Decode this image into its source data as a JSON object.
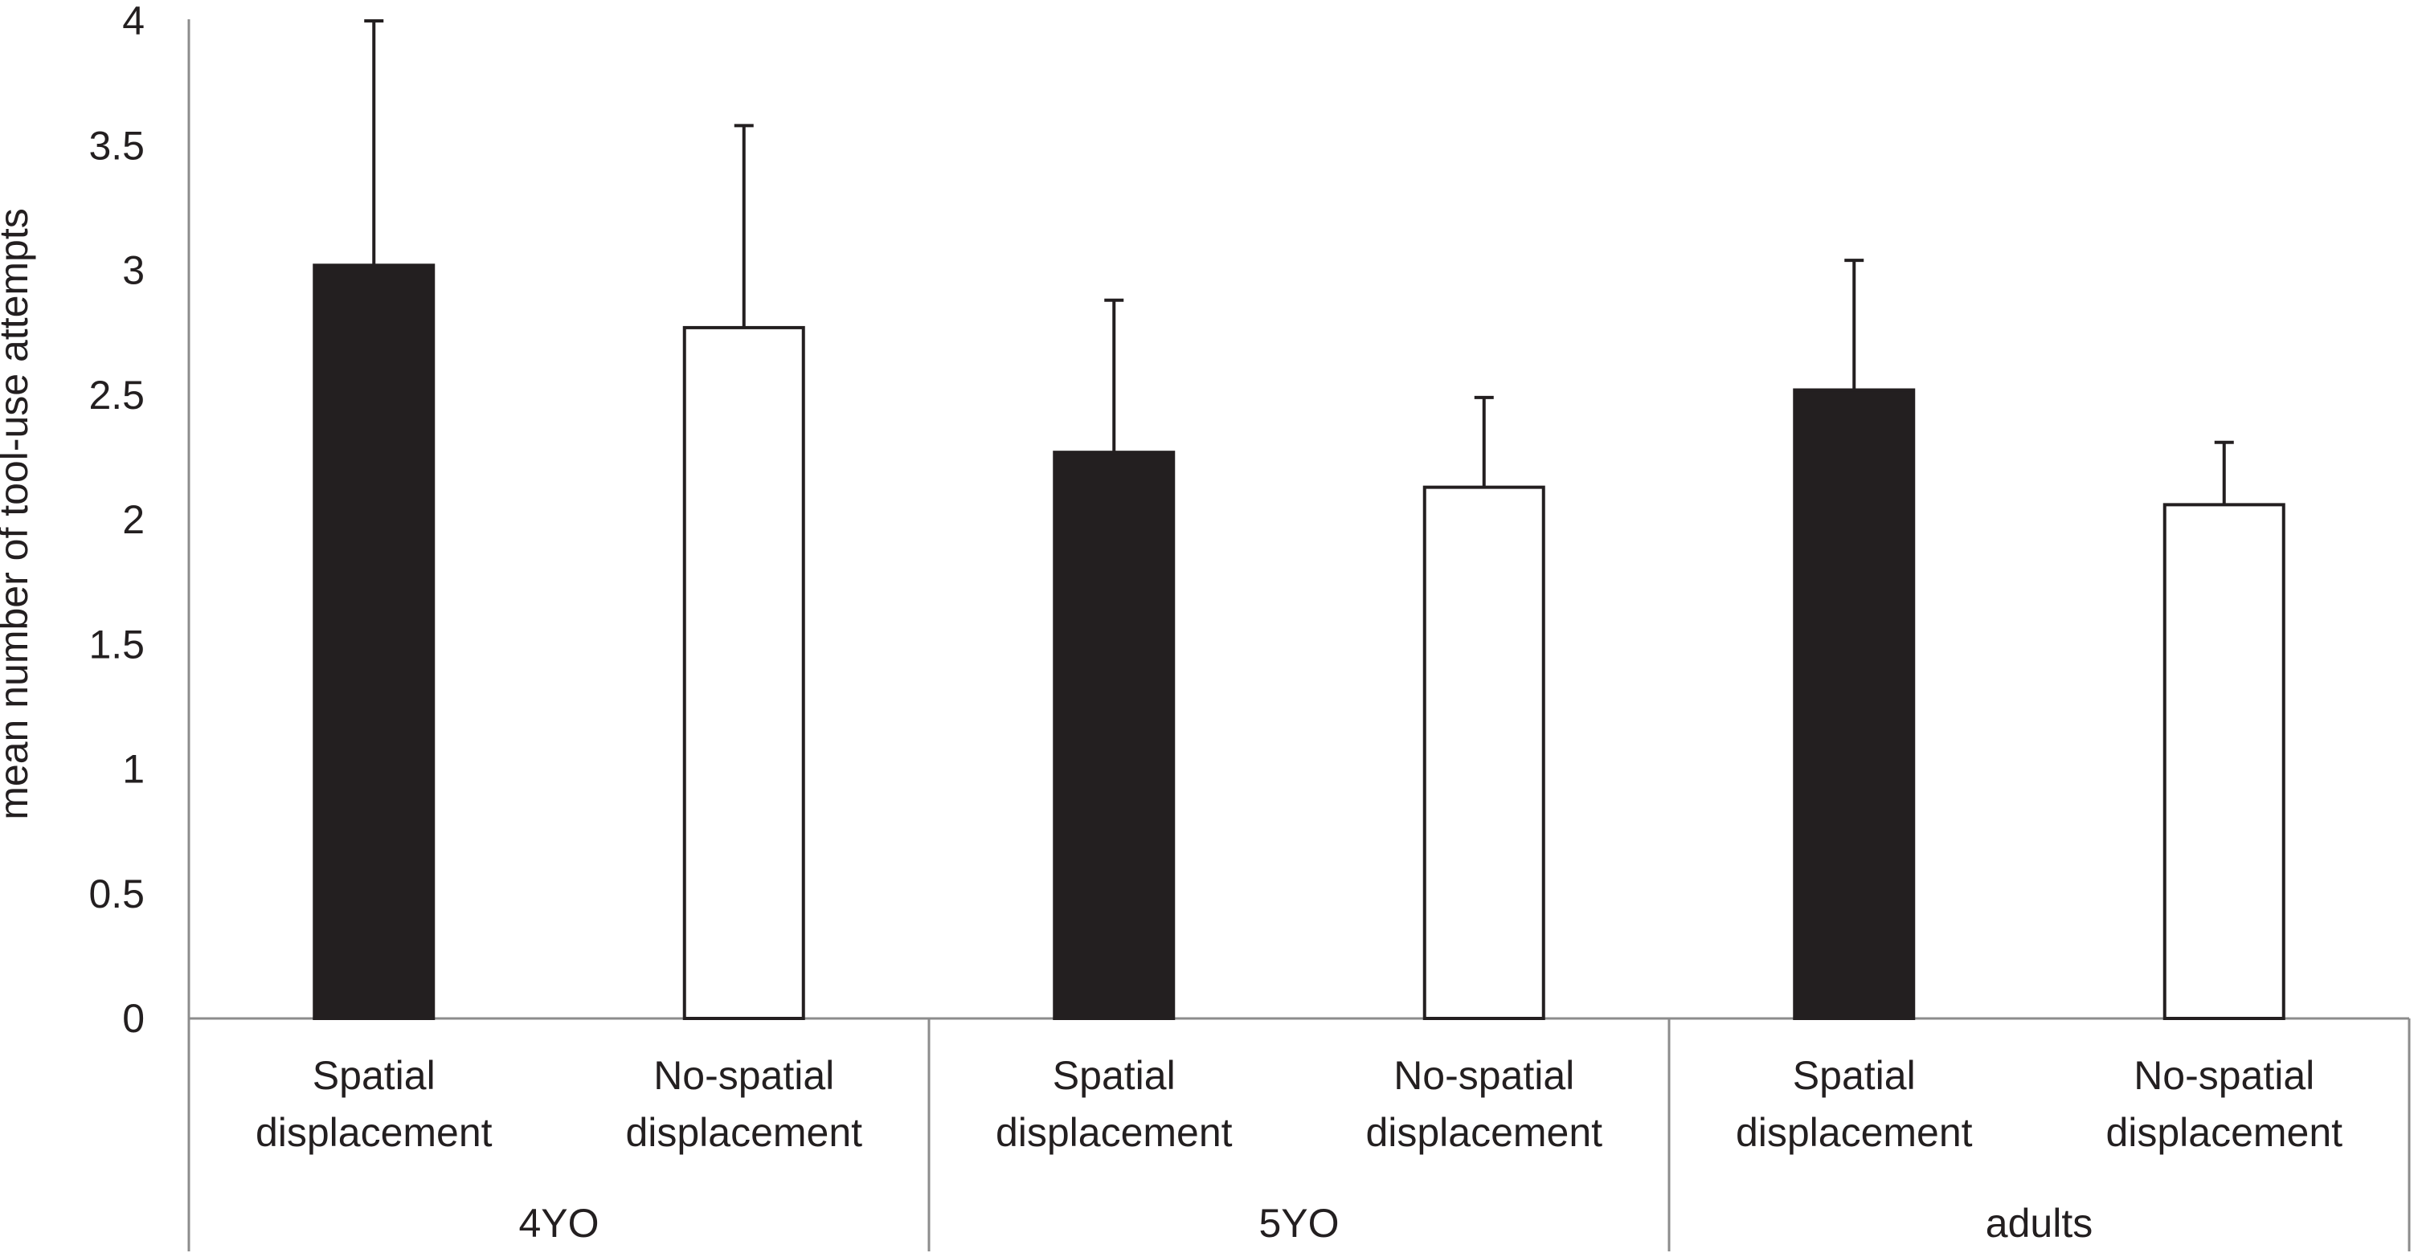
{
  "chart_data": {
    "type": "bar",
    "title": "",
    "xlabel": "",
    "ylabel": "mean number of tool-use attempts",
    "ylim": [
      0,
      4
    ],
    "yticks": [
      "0",
      "0.5",
      "1",
      "1.5",
      "2",
      "2.5",
      "3",
      "3.5",
      "4"
    ],
    "grid": false,
    "legend": "none",
    "groups": [
      {
        "name": "4YO",
        "bars": [
          {
            "label_line1": "Spatial",
            "label_line2": "displacement",
            "value": 3.02,
            "error": 0.98,
            "fill": "#231f20"
          },
          {
            "label_line1": "No-spatial",
            "label_line2": "displacement",
            "value": 2.77,
            "error": 0.81,
            "fill": "#ffffff"
          }
        ]
      },
      {
        "name": "5YO",
        "bars": [
          {
            "label_line1": "Spatial",
            "label_line2": "displacement",
            "value": 2.27,
            "error": 0.61,
            "fill": "#231f20"
          },
          {
            "label_line1": "No-spatial",
            "label_line2": "displacement",
            "value": 2.13,
            "error": 0.36,
            "fill": "#ffffff"
          }
        ]
      },
      {
        "name": "adults",
        "bars": [
          {
            "label_line1": "Spatial",
            "label_line2": "displacement",
            "value": 2.52,
            "error": 0.52,
            "fill": "#231f20"
          },
          {
            "label_line1": "No-spatial",
            "label_line2": "displacement",
            "value": 2.06,
            "error": 0.25,
            "fill": "#ffffff"
          }
        ]
      }
    ]
  },
  "colors": {
    "ink": "#231f20",
    "axis": "#8c8c8c"
  }
}
